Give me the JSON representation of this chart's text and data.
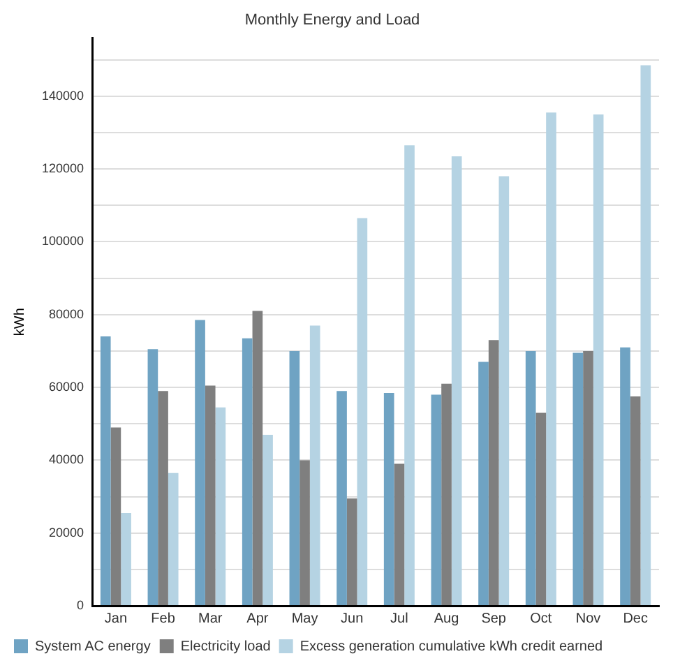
{
  "chart_data": {
    "type": "bar",
    "title": "Monthly Energy and Load",
    "ylabel": "kWh",
    "categories": [
      "Jan",
      "Feb",
      "Mar",
      "Apr",
      "May",
      "Jun",
      "Jul",
      "Aug",
      "Sep",
      "Oct",
      "Nov",
      "Dec"
    ],
    "series": [
      {
        "name": "System AC energy",
        "color": "#6fa3c3",
        "values": [
          74000,
          70500,
          78500,
          73500,
          70000,
          59000,
          58500,
          58000,
          67000,
          70000,
          69500,
          71000
        ]
      },
      {
        "name": "Electricity load",
        "color": "#7f7f7f",
        "values": [
          49000,
          59000,
          60500,
          81000,
          40000,
          29500,
          39000,
          61000,
          73000,
          53000,
          70000,
          57500
        ]
      },
      {
        "name": "Excess generation cumulative kWh credit earned",
        "color": "#b5d3e3",
        "values": [
          25500,
          36500,
          54500,
          47000,
          77000,
          106500,
          126500,
          123500,
          118000,
          135500,
          135000,
          148500
        ]
      }
    ],
    "ylim": [
      0,
      156000
    ],
    "yticks": [
      0,
      {
        "value": 10000,
        "label": null
      },
      20000,
      {
        "value": 30000,
        "label": null
      },
      40000,
      {
        "value": 50000,
        "label": null
      },
      60000,
      {
        "value": 70000,
        "label": null
      },
      80000,
      {
        "value": 90000,
        "label": null
      },
      100000,
      {
        "value": 110000,
        "label": null
      },
      120000,
      {
        "value": 130000,
        "label": null
      },
      140000,
      {
        "value": 150000,
        "label": null
      }
    ],
    "grid": "y",
    "legend": "bottom left"
  }
}
